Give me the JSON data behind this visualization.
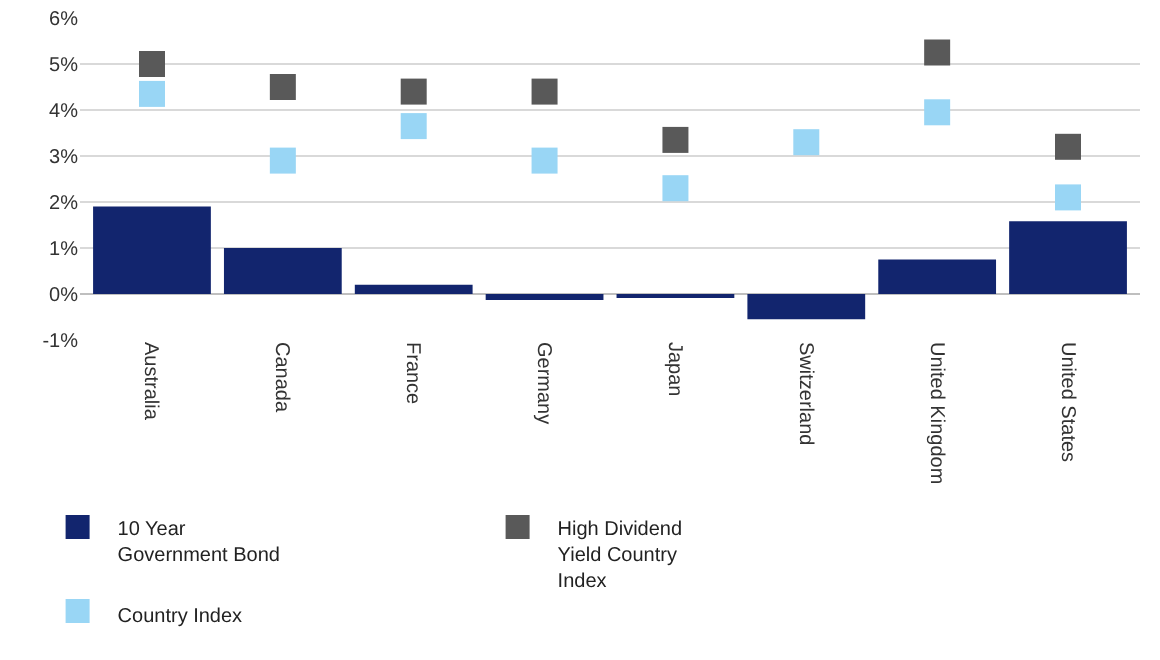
{
  "chart_data": {
    "type": "bar",
    "categories": [
      "Australia",
      "Canada",
      "France",
      "Germany",
      "Japan",
      "Switzerland",
      "United Kingdom",
      "United States"
    ],
    "series": [
      {
        "name": "10 Year Government Bond",
        "color": "#12256e",
        "values": [
          1.9,
          1.0,
          0.2,
          -0.13,
          -0.08,
          -0.55,
          0.75,
          1.58
        ]
      },
      {
        "name": "High Dividend Yield Country Index",
        "type": "scatter",
        "marker": "square",
        "color": "#595959",
        "values": [
          5.0,
          4.5,
          4.4,
          4.4,
          3.35,
          null,
          5.25,
          3.2
        ]
      },
      {
        "name": "Country Index",
        "type": "scatter",
        "marker": "square",
        "color": "#99d6f5",
        "values": [
          4.35,
          2.9,
          3.65,
          2.9,
          2.3,
          3.3,
          3.95,
          2.1
        ]
      }
    ],
    "ylim": [
      -1,
      6
    ],
    "yticks": [
      {
        "value": -1,
        "label": "-1%"
      },
      {
        "value": 0,
        "label": "0%"
      },
      {
        "value": 1,
        "label": "1%"
      },
      {
        "value": 2,
        "label": "2%"
      },
      {
        "value": 3,
        "label": "3%"
      },
      {
        "value": 4,
        "label": "4%"
      },
      {
        "value": 5,
        "label": "5%"
      },
      {
        "value": 6,
        "label": "6%"
      }
    ],
    "grid": "y",
    "legend": "bottom"
  }
}
